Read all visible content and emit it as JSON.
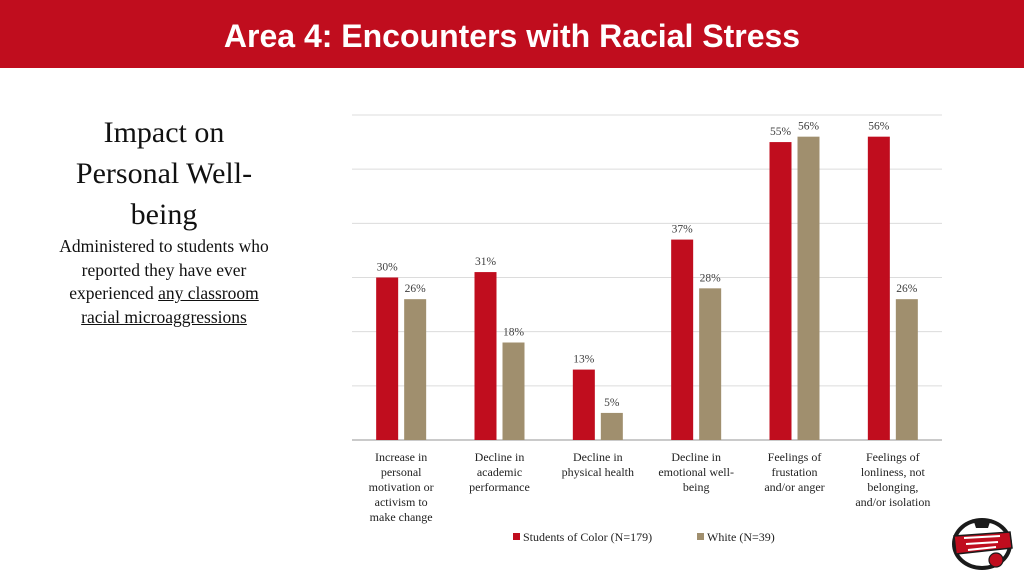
{
  "header": {
    "title": "Area 4: Encounters with Racial Stress"
  },
  "panel": {
    "heading_lines": [
      "Impact on",
      "Personal Well-",
      "being"
    ],
    "body_lines": [
      "Administered to students who",
      "reported they have ever",
      "experienced "
    ],
    "link_text_1": "any classroom",
    "link_text_2": "racial microaggressions"
  },
  "colors": {
    "header": "#c00d1e",
    "students_of_color": "#c00d1e",
    "white": "#a08f6e"
  },
  "chart_data": {
    "type": "bar",
    "categories": [
      [
        "Increase in",
        "personal",
        "motivation or",
        "activism to",
        "make change"
      ],
      [
        "Decline in",
        "academic",
        "performance"
      ],
      [
        "Decline in",
        "physical health"
      ],
      [
        "Decline in",
        "emotional well-",
        "being"
      ],
      [
        "Feelings of",
        "frustation",
        "and/or anger"
      ],
      [
        "Feelings of",
        "lonliness, not",
        "belonging,",
        "and/or isolation"
      ]
    ],
    "series": [
      {
        "name": "Students of Color (N=179)",
        "values": [
          30,
          31,
          13,
          37,
          55,
          56
        ],
        "labels": [
          "30%",
          "31%",
          "13%",
          "37%",
          "55%",
          "56%"
        ]
      },
      {
        "name": "White (N=39)",
        "values": [
          26,
          18,
          5,
          28,
          56,
          26
        ],
        "labels": [
          "26%",
          "18%",
          "5%",
          "28%",
          "56%",
          "26%"
        ]
      }
    ],
    "ylim": [
      0,
      60
    ],
    "grid": true,
    "legend": "bottom"
  }
}
